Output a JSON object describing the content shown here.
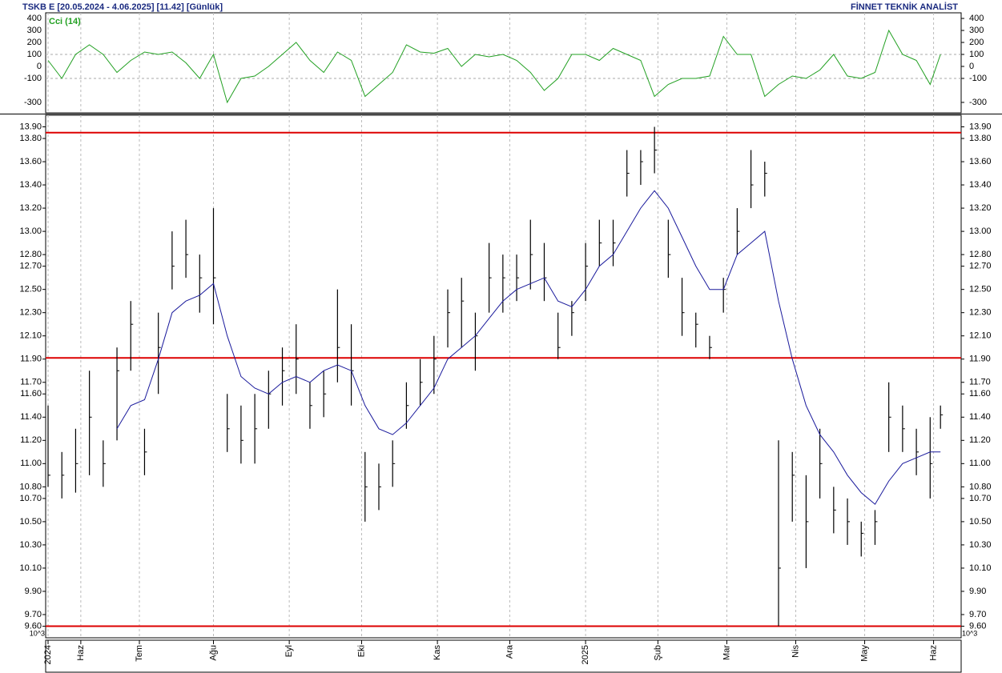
{
  "header": {
    "left": "TSKB  E  [20.05.2024 - 4.06.2025]  [11.42]  [Günlük]",
    "right": "FİNNET TEKNİK ANALİST",
    "unit_left": "10^3",
    "unit_right": "10^3"
  },
  "chart_data": [
    {
      "type": "line",
      "ylim": [
        -387,
        447
      ],
      "yticks": [
        400,
        300,
        200,
        100,
        0,
        -100,
        -300
      ],
      "grid_values": [
        100,
        -100
      ],
      "xlim": [
        -0.7,
        265
      ],
      "x": [
        0,
        4,
        8,
        12,
        16,
        20,
        24,
        28,
        32,
        36,
        40,
        44,
        48,
        52,
        56,
        60,
        64,
        68,
        72,
        76,
        80,
        84,
        88,
        92,
        96,
        100,
        104,
        108,
        112,
        116,
        120,
        124,
        128,
        132,
        136,
        140,
        144,
        148,
        152,
        156,
        160,
        164,
        168,
        172,
        176,
        180,
        184,
        188,
        192,
        196,
        200,
        204,
        208,
        212,
        216,
        220,
        224,
        228,
        232,
        236,
        240,
        244,
        248,
        252,
        256,
        259
      ],
      "series": [
        {
          "name": "Cci (14)",
          "color": "#22a022",
          "values": [
            50,
            -100,
            100,
            180,
            100,
            -50,
            50,
            120,
            100,
            120,
            30,
            -100,
            100,
            -300,
            -100,
            -80,
            0,
            100,
            200,
            50,
            -50,
            120,
            50,
            -250,
            -150,
            -50,
            180,
            120,
            110,
            150,
            0,
            100,
            80,
            100,
            50,
            -50,
            -200,
            -100,
            100,
            100,
            50,
            150,
            100,
            50,
            -250,
            -150,
            -100,
            -100,
            -80,
            250,
            100,
            100,
            -250,
            -150,
            -80,
            -100,
            -30,
            100,
            -80,
            -100,
            -50,
            300,
            100,
            50,
            -150,
            100
          ]
        }
      ]
    },
    {
      "type": "ohlc",
      "ylim": [
        9.5,
        14.0
      ],
      "xlim": [
        -0.7,
        265
      ],
      "yticks": [
        {
          "value": 13.9,
          "label": "13.90"
        },
        {
          "value": 13.8,
          "label": "13.80"
        },
        {
          "value": 13.6,
          "label": "13.60"
        },
        {
          "value": 13.4,
          "label": "13.40"
        },
        {
          "value": 13.2,
          "label": "13.20"
        },
        {
          "value": 13.0,
          "label": "13.00"
        },
        {
          "value": 12.8,
          "label": "12.80"
        },
        {
          "value": 12.7,
          "label": "12.70"
        },
        {
          "value": 12.5,
          "label": "12.50"
        },
        {
          "value": 12.3,
          "label": "12.30"
        },
        {
          "value": 12.1,
          "label": "12.10"
        },
        {
          "value": 11.9,
          "label": "11.90"
        },
        {
          "value": 11.7,
          "label": "11.70"
        },
        {
          "value": 11.6,
          "label": "11.60"
        },
        {
          "value": 11.4,
          "label": "11.40"
        },
        {
          "value": 11.2,
          "label": "11.20"
        },
        {
          "value": 11.0,
          "label": "11.00"
        },
        {
          "value": 10.8,
          "label": "10.80"
        },
        {
          "value": 10.7,
          "label": "10.70"
        },
        {
          "value": 10.5,
          "label": "10.50"
        },
        {
          "value": 10.3,
          "label": "10.30"
        },
        {
          "value": 10.1,
          "label": "10.10"
        },
        {
          "value": 9.9,
          "label": "9.90"
        },
        {
          "value": 9.7,
          "label": "9.70"
        },
        {
          "value": 9.6,
          "label": "9.60"
        }
      ],
      "xticks": [
        {
          "value": 0,
          "label": "2024"
        },
        {
          "value": 9.5,
          "label": "Haz"
        },
        {
          "value": 26.5,
          "label": "Tem"
        },
        {
          "value": 48,
          "label": "Ağu"
        },
        {
          "value": 70,
          "label": "Eyl"
        },
        {
          "value": 91,
          "label": "Eki"
        },
        {
          "value": 113,
          "label": "Kas"
        },
        {
          "value": 134,
          "label": "Ara"
        },
        {
          "value": 156,
          "label": "2025"
        },
        {
          "value": 177,
          "label": "Şub"
        },
        {
          "value": 197,
          "label": "Mar"
        },
        {
          "value": 217,
          "label": "Nis"
        },
        {
          "value": 237,
          "label": "May"
        },
        {
          "value": 257,
          "label": "Haz"
        }
      ],
      "hlines": [
        13.85,
        11.91,
        9.6
      ],
      "hline_color": "#dd0000",
      "color": "#000000",
      "x": [
        0,
        4,
        8,
        12,
        16,
        20,
        24,
        28,
        32,
        36,
        40,
        44,
        48,
        52,
        56,
        60,
        64,
        68,
        72,
        76,
        80,
        84,
        88,
        92,
        96,
        100,
        104,
        108,
        112,
        116,
        120,
        124,
        128,
        132,
        136,
        140,
        144,
        148,
        152,
        156,
        160,
        164,
        168,
        172,
        176,
        180,
        184,
        188,
        192,
        196,
        200,
        204,
        208,
        212,
        216,
        220,
        224,
        228,
        232,
        236,
        240,
        244,
        248,
        252,
        256,
        259
      ],
      "high": [
        11.5,
        11.1,
        11.3,
        11.8,
        11.2,
        12.0,
        12.4,
        11.3,
        12.3,
        13.0,
        13.1,
        12.8,
        13.2,
        11.6,
        11.5,
        11.6,
        11.8,
        12.0,
        12.2,
        11.7,
        11.8,
        12.5,
        12.2,
        11.1,
        11.0,
        11.2,
        11.7,
        11.9,
        12.1,
        12.5,
        12.6,
        12.3,
        12.9,
        12.8,
        12.8,
        13.1,
        12.9,
        12.3,
        12.4,
        12.9,
        13.1,
        13.1,
        13.7,
        13.7,
        13.9,
        13.1,
        12.6,
        12.3,
        12.1,
        12.6,
        13.2,
        13.7,
        13.6,
        11.2,
        11.1,
        10.9,
        11.3,
        10.8,
        10.7,
        10.5,
        10.6,
        11.7,
        11.5,
        11.3,
        11.4,
        11.5
      ],
      "low": [
        10.8,
        10.7,
        10.75,
        10.9,
        10.8,
        11.2,
        11.8,
        10.9,
        11.6,
        12.5,
        12.6,
        12.3,
        12.2,
        11.1,
        11.0,
        11.0,
        11.3,
        11.5,
        11.6,
        11.3,
        11.4,
        11.7,
        11.5,
        10.5,
        10.6,
        10.8,
        11.3,
        11.5,
        11.6,
        12.0,
        12.0,
        11.8,
        12.3,
        12.3,
        12.4,
        12.5,
        12.4,
        11.9,
        12.1,
        12.4,
        12.7,
        12.7,
        13.3,
        13.4,
        13.5,
        12.6,
        12.1,
        12.0,
        11.9,
        12.3,
        12.8,
        13.2,
        13.3,
        9.6,
        10.5,
        10.1,
        10.7,
        10.4,
        10.3,
        10.2,
        10.3,
        11.1,
        11.1,
        10.9,
        10.7,
        11.3
      ],
      "close": [
        10.9,
        10.9,
        11.0,
        11.4,
        11.0,
        11.8,
        12.2,
        11.1,
        12.0,
        12.7,
        12.8,
        12.6,
        12.6,
        11.3,
        11.2,
        11.3,
        11.6,
        11.8,
        11.9,
        11.5,
        11.6,
        12.0,
        11.8,
        10.8,
        10.8,
        11.0,
        11.5,
        11.7,
        11.9,
        12.3,
        12.4,
        12.1,
        12.6,
        12.6,
        12.6,
        12.8,
        12.6,
        12.0,
        12.3,
        12.7,
        12.9,
        12.9,
        13.5,
        13.6,
        13.7,
        12.8,
        12.3,
        12.2,
        12.0,
        12.5,
        13.0,
        13.4,
        13.5,
        10.1,
        10.9,
        10.5,
        11.0,
        10.6,
        10.5,
        10.4,
        10.5,
        11.4,
        11.3,
        11.1,
        11.0,
        11.42
      ],
      "ma": {
        "color": "#1a1a9c",
        "values": [
          null,
          null,
          null,
          null,
          null,
          11.3,
          11.5,
          11.55,
          11.9,
          12.3,
          12.4,
          12.45,
          12.55,
          12.1,
          11.75,
          11.65,
          11.6,
          11.7,
          11.75,
          11.7,
          11.8,
          11.85,
          11.8,
          11.5,
          11.3,
          11.25,
          11.35,
          11.5,
          11.65,
          11.9,
          12.0,
          12.1,
          12.25,
          12.4,
          12.5,
          12.55,
          12.6,
          12.4,
          12.35,
          12.5,
          12.7,
          12.8,
          13.0,
          13.2,
          13.35,
          13.2,
          12.95,
          12.7,
          12.5,
          12.5,
          12.8,
          12.9,
          13.0,
          12.4,
          11.9,
          11.5,
          11.25,
          11.1,
          10.9,
          10.75,
          10.65,
          10.85,
          11.0,
          11.05,
          11.1,
          11.1
        ]
      }
    }
  ]
}
